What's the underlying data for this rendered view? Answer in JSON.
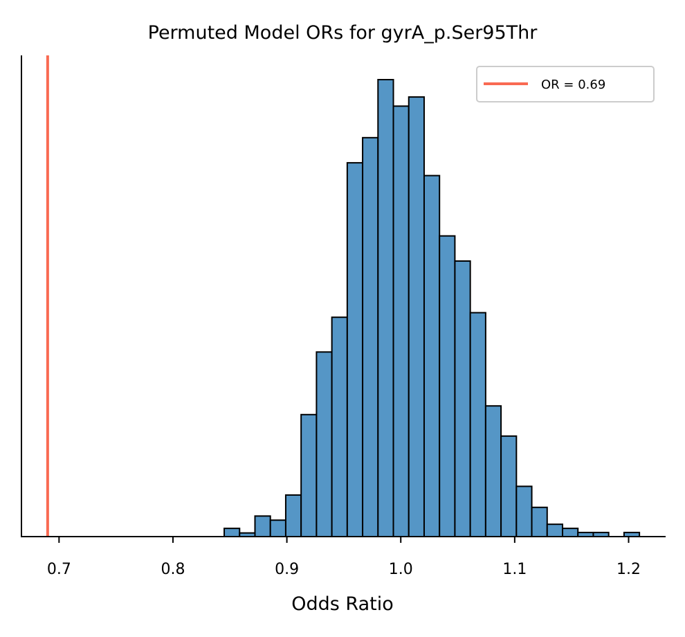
{
  "chart_data": {
    "type": "histogram",
    "title": "Permuted Model ORs for gyrA_p.Ser95Thr",
    "xlabel": "Odds Ratio",
    "ylabel": "",
    "xlim": [
      0.667,
      1.2325
    ],
    "ylim": [
      0,
      1.05
    ],
    "x_ticks": [
      "0.7",
      "0.8",
      "0.9",
      "1.0",
      "1.1",
      "1.2"
    ],
    "x_tick_values": [
      0.7,
      0.8,
      0.9,
      1.0,
      1.1,
      1.2
    ],
    "y_ticks_visible": false,
    "grid": false,
    "bar_color": "#5596c6",
    "edge_color": "#000000",
    "bin_edges": [
      0.845,
      0.8585,
      0.872,
      0.8855,
      0.899,
      0.9125,
      0.926,
      0.9395,
      0.953,
      0.9665,
      0.98,
      0.9935,
      1.007,
      1.0205,
      1.034,
      1.0475,
      1.061,
      1.0745,
      1.088,
      1.1015,
      1.115,
      1.1285,
      1.142,
      1.1555,
      1.169,
      1.1825,
      1.196,
      1.2095
    ],
    "counts": [
      0.018,
      0.008,
      0.045,
      0.036,
      0.091,
      0.267,
      0.404,
      0.48,
      0.818,
      0.873,
      1.0,
      0.942,
      0.962,
      0.79,
      0.658,
      0.603,
      0.49,
      0.286,
      0.22,
      0.11,
      0.064,
      0.027,
      0.018,
      0.009,
      0.009,
      0.0,
      0.009
    ],
    "reference_line": {
      "x": 0.69,
      "label": "OR = 0.69",
      "color": "#f96a52"
    },
    "legend": {
      "position": "top-right",
      "entries": [
        "OR = 0.69"
      ]
    }
  }
}
